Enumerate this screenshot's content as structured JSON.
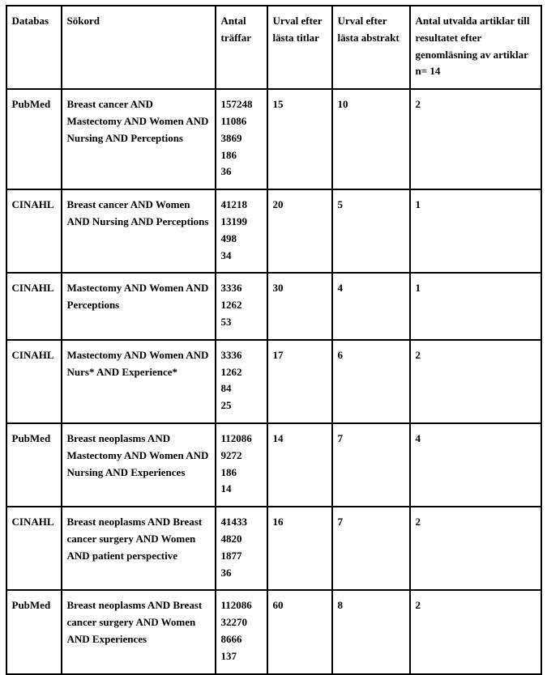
{
  "columns": [
    "Databas",
    "Sökord",
    "Antal träffar",
    "Urval efter lästa titlar",
    "Urval efter lästa abstrakt",
    "Antal utvalda artiklar till resultatet efter genomläsning av artiklar n= 14"
  ],
  "rows": [
    {
      "databas": "PubMed",
      "sokord": "Breast cancer AND Mastectomy AND Women AND Nursing AND Perceptions",
      "traffar": [
        "157248",
        "11086",
        "3869",
        "186",
        "36"
      ],
      "urval_titlar": "15",
      "urval_abstrakt": "10",
      "utvalda": "2"
    },
    {
      "databas": "CINAHL",
      "sokord": "Breast cancer AND Women AND Nursing AND Perceptions",
      "traffar": [
        "41218",
        "13199",
        "498",
        "34"
      ],
      "urval_titlar": "20",
      "urval_abstrakt": "5",
      "utvalda": "1"
    },
    {
      "databas": "CINAHL",
      "sokord": "Mastectomy AND Women AND Perceptions",
      "traffar": [
        "3336",
        "1262",
        "53"
      ],
      "urval_titlar": "30",
      "urval_abstrakt": "4",
      "utvalda": "1"
    },
    {
      "databas": "CINAHL",
      "sokord": "Mastectomy AND Women AND Nurs* AND Experience*",
      "traffar": [
        "3336",
        "1262",
        "84",
        "25"
      ],
      "urval_titlar": "17",
      "urval_abstrakt": "6",
      "utvalda": "2"
    },
    {
      "databas": "PubMed",
      "sokord": "Breast neoplasms AND Mastectomy AND Women AND Nursing AND Experiences",
      "traffar": [
        "112086",
        "9272",
        "186",
        "14"
      ],
      "urval_titlar": "14",
      "urval_abstrakt": "7",
      "utvalda": "4"
    },
    {
      "databas": "CINAHL",
      "sokord": "Breast neoplasms AND Breast cancer surgery AND Women AND patient perspective",
      "traffar": [
        "41433",
        "4820",
        "1877",
        "36"
      ],
      "urval_titlar": "16",
      "urval_abstrakt": "7",
      "utvalda": "2"
    },
    {
      "databas": "PubMed",
      "sokord": "Breast neoplasms AND Breast cancer surgery AND Women AND Experiences",
      "traffar": [
        "112086",
        "32270",
        "8666",
        "137"
      ],
      "urval_titlar": "60",
      "urval_abstrakt": "8",
      "utvalda": "2"
    }
  ]
}
